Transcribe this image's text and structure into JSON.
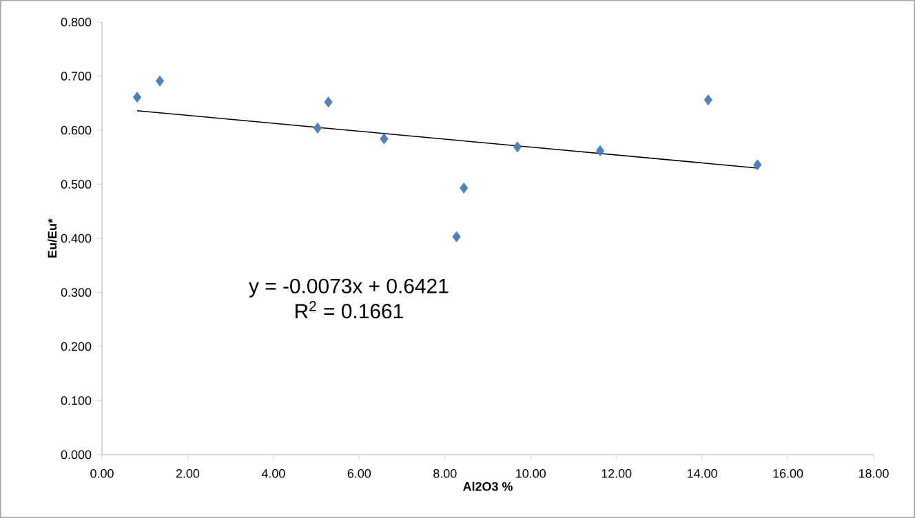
{
  "chart_data": {
    "type": "scatter",
    "xlabel": "Al2O3 %",
    "ylabel": "Eu/Eu*",
    "xlim": [
      0,
      18
    ],
    "ylim": [
      0,
      0.8
    ],
    "xticks": [
      {
        "value": 0,
        "label": "0.00"
      },
      {
        "value": 2,
        "label": "2.00"
      },
      {
        "value": 4,
        "label": "4.00"
      },
      {
        "value": 6,
        "label": "6.00"
      },
      {
        "value": 8,
        "label": "8.00"
      },
      {
        "value": 10,
        "label": "10.00"
      },
      {
        "value": 12,
        "label": "12.00"
      },
      {
        "value": 14,
        "label": "14.00"
      },
      {
        "value": 16,
        "label": "16.00"
      },
      {
        "value": 18,
        "label": "18.00"
      }
    ],
    "yticks": [
      {
        "value": 0,
        "label": "0.000"
      },
      {
        "value": 0.1,
        "label": "0.100"
      },
      {
        "value": 0.2,
        "label": "0.200"
      },
      {
        "value": 0.3,
        "label": "0.300"
      },
      {
        "value": 0.4,
        "label": "0.400"
      },
      {
        "value": 0.5,
        "label": "0.500"
      },
      {
        "value": 0.6,
        "label": "0.600"
      },
      {
        "value": 0.7,
        "label": "0.700"
      },
      {
        "value": 0.8,
        "label": "0.800"
      }
    ],
    "marker": "diamond",
    "series": [
      {
        "color": "#4f81bd",
        "x": [
          0.82,
          1.35,
          5.03,
          5.28,
          6.58,
          8.27,
          8.44,
          9.69,
          11.62,
          14.14,
          15.29
        ],
        "values": [
          0.661,
          0.691,
          0.604,
          0.652,
          0.584,
          0.403,
          0.493,
          0.569,
          0.562,
          0.656,
          0.536
        ]
      },
      {
        "type": "line",
        "color": "#000000",
        "marker": "none",
        "x": [
          0.82,
          15.29
        ],
        "values": [
          0.636,
          0.53
        ]
      }
    ],
    "annotations": [
      "y = -0.0073x + 0.6421",
      "R$^{2}$ = 0.1661"
    ]
  }
}
